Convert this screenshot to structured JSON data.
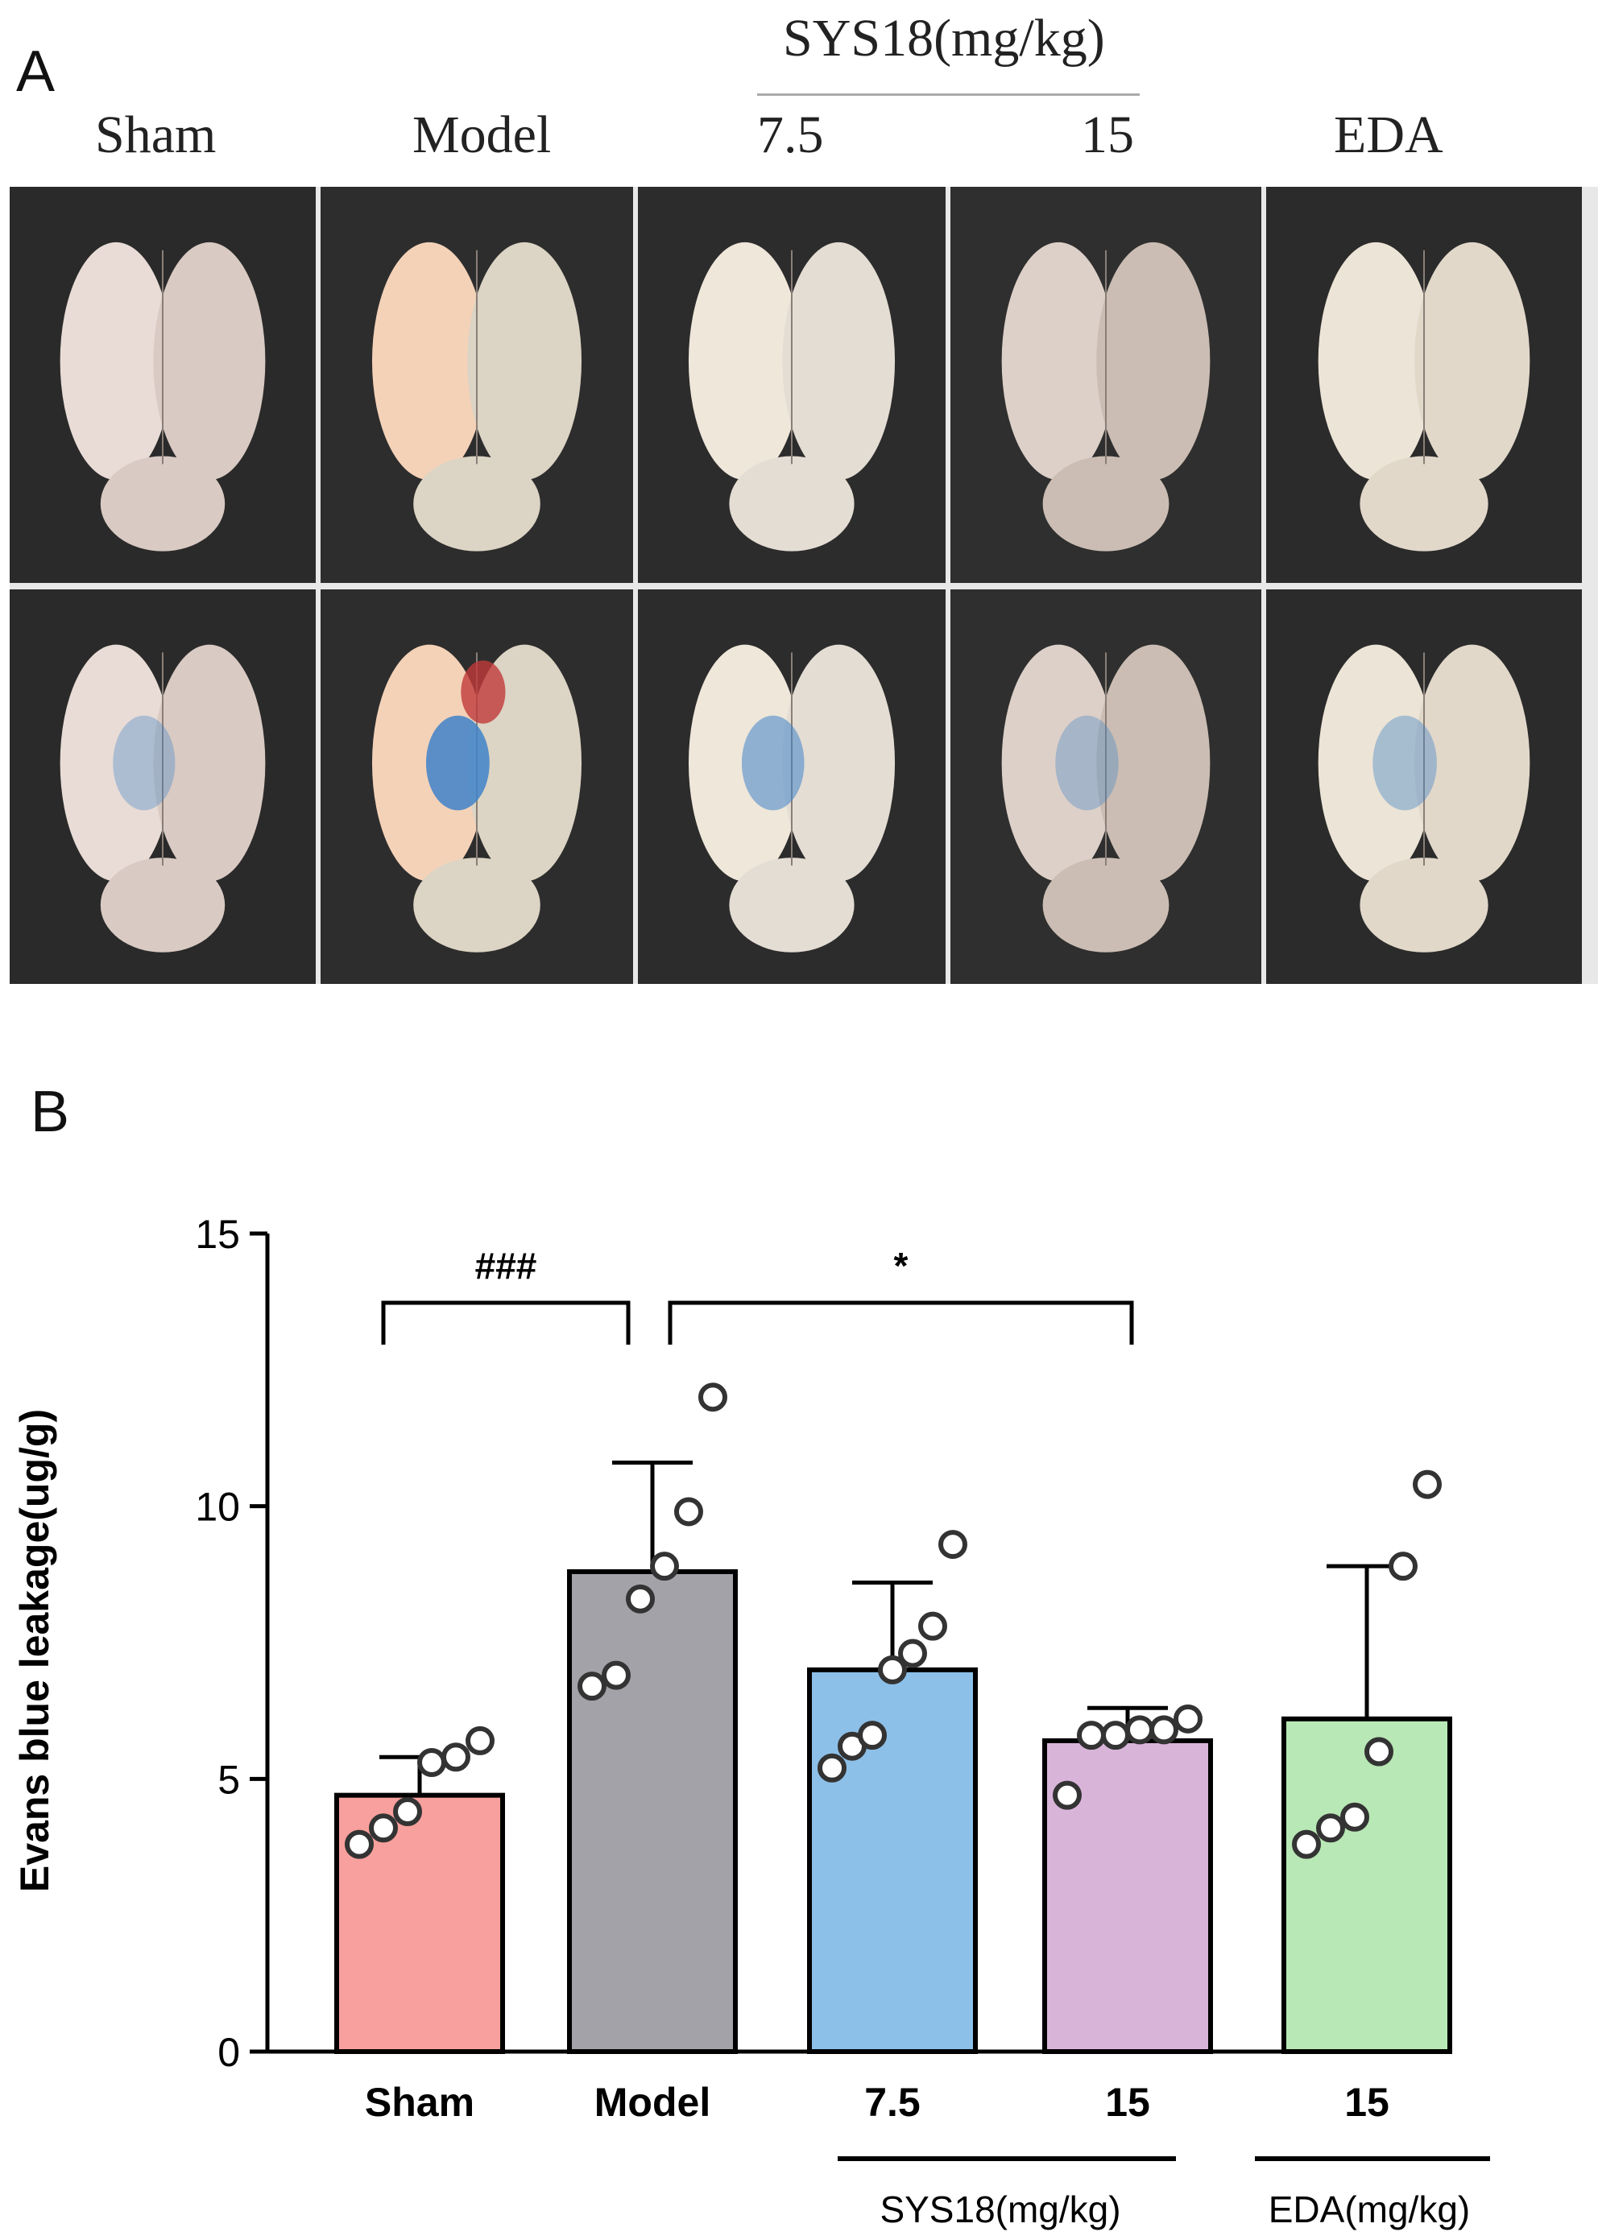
{
  "panel_a": {
    "letter": "A",
    "header": "SYS18(mg/kg)",
    "columns": [
      "Sham",
      "Model",
      "7.5",
      "15",
      "EDA"
    ]
  },
  "panel_b": {
    "letter": "B"
  },
  "chart_data": {
    "type": "bar",
    "categories": [
      "Sham",
      "Model",
      "7.5",
      "15",
      "15"
    ],
    "values": [
      4.7,
      8.8,
      7.0,
      5.7,
      6.1
    ],
    "error": [
      0.7,
      2.0,
      1.6,
      0.6,
      2.8
    ],
    "points": [
      [
        3.8,
        4.1,
        4.4,
        5.3,
        5.4,
        5.7
      ],
      [
        6.7,
        6.9,
        8.3,
        8.9,
        9.9,
        12.0
      ],
      [
        5.2,
        5.6,
        5.8,
        7.0,
        7.3,
        7.8,
        9.3
      ],
      [
        4.7,
        5.8,
        5.8,
        5.9,
        5.9,
        6.1
      ],
      [
        3.8,
        4.1,
        4.3,
        5.5,
        8.9,
        10.4
      ]
    ],
    "colors": [
      "#F8A09D",
      "#A3A2A8",
      "#8DC0E8",
      "#D9B4D9",
      "#B8E8B5"
    ],
    "ylabel": "Evans blue leakage(ug/g)",
    "ylim": [
      0,
      15
    ],
    "yticks": [
      0,
      5,
      10,
      15
    ],
    "grid": false,
    "group_labels": [
      "SYS18(mg/kg)",
      "EDA(mg/kg)"
    ],
    "significance": [
      {
        "from": 0,
        "to": 1,
        "label": "###"
      },
      {
        "from": 1,
        "to": 3,
        "label": "*"
      }
    ]
  }
}
